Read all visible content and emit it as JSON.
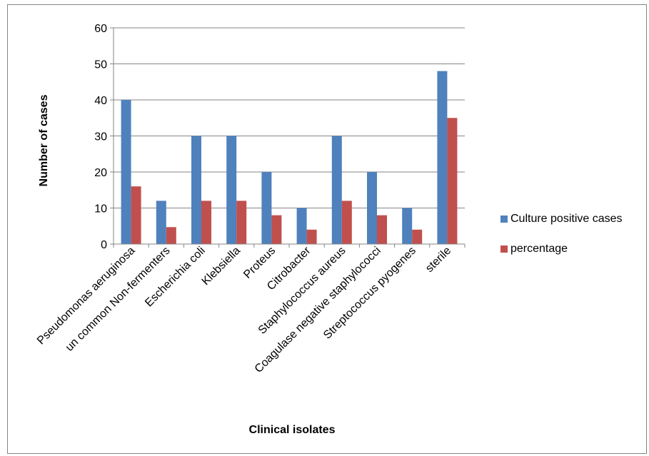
{
  "chart_data": {
    "type": "bar",
    "title": "",
    "xlabel": "Clinical isolates",
    "ylabel": "Number of cases",
    "ylim": [
      0,
      60
    ],
    "yticks": [
      0,
      10,
      20,
      30,
      40,
      50,
      60
    ],
    "grid": true,
    "legend_position": "right",
    "categories": [
      "Pseudomonas aeruginosa",
      "un common Non-fermenters",
      "Escherichia coli",
      "Klebsiella",
      "Proteus",
      "Citrobacter",
      "Staphylococcus aureus",
      "Coagulase negative staphylococci",
      "Streptococcus pyogenes",
      "sterile"
    ],
    "series": [
      {
        "name": "Culture positive cases",
        "color": "#4F81BD",
        "values": [
          40,
          12,
          30,
          30,
          20,
          10,
          30,
          20,
          10,
          48
        ]
      },
      {
        "name": "percentage",
        "color": "#C0504D",
        "values": [
          16,
          4.7,
          12,
          12,
          8,
          4,
          12,
          8,
          4,
          35
        ]
      }
    ]
  }
}
